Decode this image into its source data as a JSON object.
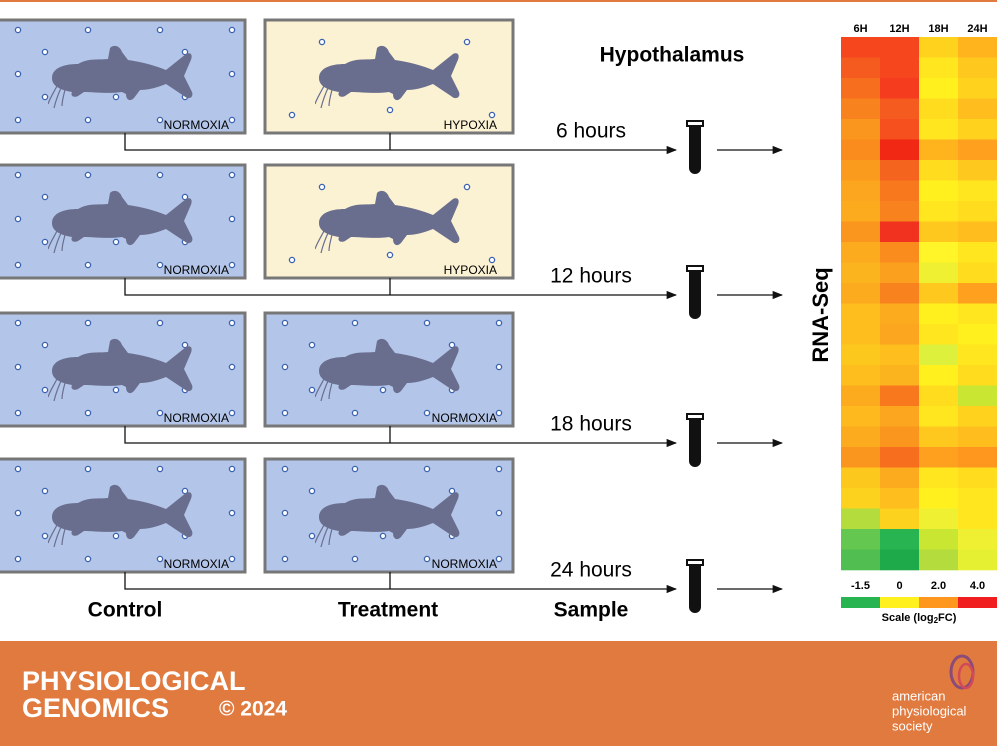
{
  "heading": "Hypothalamus",
  "rows": [
    {
      "time": "6 hours",
      "control": {
        "label": "NORMOXIA",
        "fill": "#b3c5e8"
      },
      "treatment": {
        "label": "HYPOXIA",
        "fill": "#fbf1d3"
      }
    },
    {
      "time": "12 hours",
      "control": {
        "label": "NORMOXIA",
        "fill": "#b3c5e8"
      },
      "treatment": {
        "label": "HYPOXIA",
        "fill": "#fbf1d3"
      }
    },
    {
      "time": "18 hours",
      "control": {
        "label": "NORMOXIA",
        "fill": "#b3c5e8"
      },
      "treatment": {
        "label": "NORMOXIA",
        "fill": "#b3c5e8"
      }
    },
    {
      "time": "24 hours",
      "control": {
        "label": "NORMOXIA",
        "fill": "#b3c5e8"
      },
      "treatment": {
        "label": "NORMOXIA",
        "fill": "#b3c5e8"
      }
    }
  ],
  "column_labels": {
    "control": "Control",
    "treatment": "Treatment",
    "sample": "Sample"
  },
  "method": "RNA-Seq",
  "heatmap": {
    "columns": [
      "6H",
      "12H",
      "18H",
      "24H"
    ],
    "cells": [
      [
        "#f5461e",
        "#f5461e",
        "#ffd21e",
        "#ffb41e"
      ],
      [
        "#f55a1e",
        "#f5461e",
        "#ffe61e",
        "#ffc81e"
      ],
      [
        "#f76e1e",
        "#f53c1e",
        "#fff01e",
        "#ffd21e"
      ],
      [
        "#f8821e",
        "#f55a1e",
        "#ffdc1e",
        "#ffbe1e"
      ],
      [
        "#fa961e",
        "#f5501e",
        "#ffe61e",
        "#ffd21e"
      ],
      [
        "#fa8c1e",
        "#f02814",
        "#ffb41e",
        "#ffa01e"
      ],
      [
        "#fb9b1e",
        "#f5641e",
        "#ffdc1e",
        "#ffc81e"
      ],
      [
        "#fca51e",
        "#f8781e",
        "#fff01e",
        "#ffe61e"
      ],
      [
        "#fcaa1e",
        "#f8821e",
        "#ffe61e",
        "#ffdc1e"
      ],
      [
        "#fa961e",
        "#f0321e",
        "#ffc81e",
        "#ffbe1e"
      ],
      [
        "#fcaa1e",
        "#fa8c1e",
        "#fff528",
        "#ffe61e"
      ],
      [
        "#fcb41e",
        "#faa01e",
        "#f0f032",
        "#ffdc1e"
      ],
      [
        "#fcaa1e",
        "#f8821e",
        "#ffc81e",
        "#ffa01e"
      ],
      [
        "#fdbe1e",
        "#fcaa1e",
        "#fff01e",
        "#ffe61e"
      ],
      [
        "#fdbe1e",
        "#fca51e",
        "#ffe61e",
        "#fff01e"
      ],
      [
        "#fdc81e",
        "#fdbe1e",
        "#dcf03c",
        "#ffe61e"
      ],
      [
        "#fdbe1e",
        "#fcb41e",
        "#fff01e",
        "#ffdc1e"
      ],
      [
        "#fcaa1e",
        "#f8781e",
        "#ffdc1e",
        "#c8e632"
      ],
      [
        "#fdb91e",
        "#fca51e",
        "#ffe61e",
        "#ffd21e"
      ],
      [
        "#fcaa1e",
        "#fa961e",
        "#ffc81e",
        "#ffbe1e"
      ],
      [
        "#fa961e",
        "#f76e1e",
        "#ffa01e",
        "#ff961e"
      ],
      [
        "#fdc81e",
        "#fcaa1e",
        "#ffe61e",
        "#ffdc1e"
      ],
      [
        "#fdd21e",
        "#fdbe1e",
        "#fff01e",
        "#ffe61e"
      ],
      [
        "#b4dc3c",
        "#fdd21e",
        "#f0f032",
        "#ffe61e"
      ],
      [
        "#64c850",
        "#28b450",
        "#c8e632",
        "#f0f032"
      ],
      [
        "#50be50",
        "#1eaa4b",
        "#b4dc3c",
        "#e6f032"
      ]
    ],
    "scale_labels": [
      "-1.5",
      "0",
      "2.0",
      "4.0"
    ],
    "scale_colors": [
      "#28b450",
      "#fff01e",
      "#ff961e",
      "#f01e1e"
    ],
    "scale_title": {
      "pre": "Scale (log",
      "sub": "2",
      "post": "FC)"
    }
  },
  "footer": {
    "journal_line1": "PHYSIOLOGICAL",
    "journal_line2": "GENOMICS",
    "copyright": "© 2024",
    "society": [
      "american",
      "physiological",
      "society"
    ]
  }
}
